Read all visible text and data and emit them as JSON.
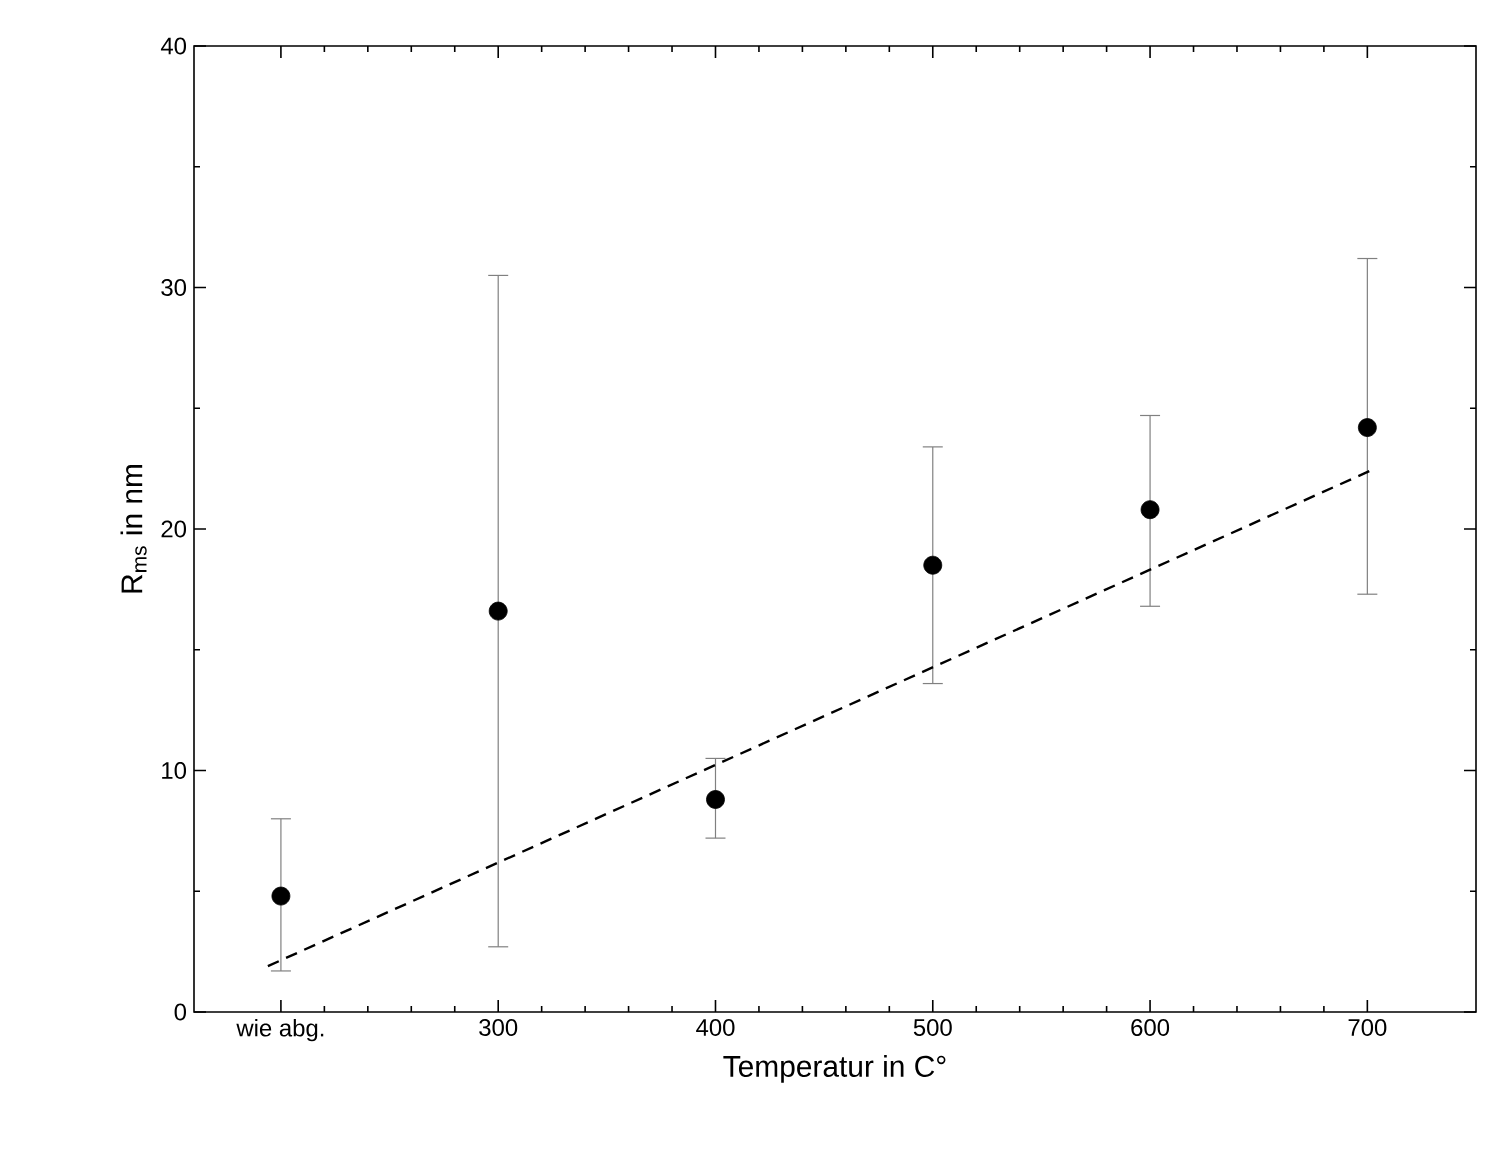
{
  "chart_data": {
    "type": "scatter",
    "xlabel": "Temperatur in C°",
    "ylabel": "R$_{ms}$ in nm",
    "x": [
      200,
      300,
      400,
      500,
      600,
      700
    ],
    "xlim": [
      160,
      750
    ],
    "ylim": [
      0,
      40
    ],
    "xticks": [
      {
        "value": 200,
        "label": "wie abg."
      },
      300,
      400,
      500,
      600,
      700
    ],
    "yticks": [
      0,
      10,
      20,
      30,
      40
    ],
    "series": [
      {
        "color": "#000000",
        "marker": "circle",
        "values": [
          4.8,
          16.6,
          8.8,
          18.5,
          20.8,
          24.2
        ],
        "errors": [
          [
            1.7,
            8.0
          ],
          [
            2.7,
            30.5
          ],
          [
            7.2,
            10.5
          ],
          [
            13.6,
            23.4
          ],
          [
            16.8,
            24.7
          ],
          [
            17.3,
            31.2
          ]
        ]
      },
      {
        "type": "line",
        "color": "#000000",
        "line_style": "dashed",
        "marker": "none",
        "x": [
          194,
          701
        ],
        "values": [
          1.9,
          22.4
        ]
      }
    ]
  }
}
